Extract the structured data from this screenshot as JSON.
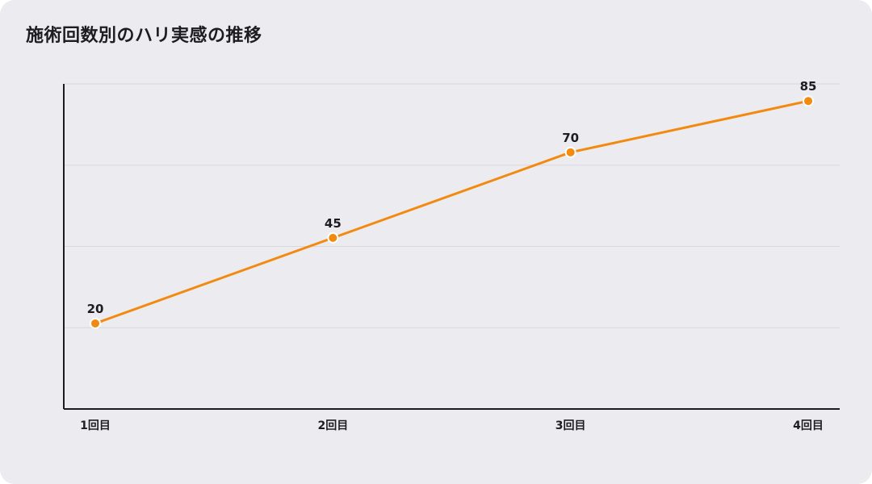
{
  "chart_data": {
    "type": "line",
    "title": "施術回数別のハリ実感の推移",
    "categories": [
      "1回目",
      "2回目",
      "3回目",
      "4回目"
    ],
    "series": [
      {
        "values": [
          20,
          45,
          70,
          85
        ],
        "color": "#f28a10"
      }
    ],
    "xlabel": "",
    "ylabel": "",
    "ylim": [
      -5,
      90
    ],
    "grid": true,
    "legend": "none"
  }
}
